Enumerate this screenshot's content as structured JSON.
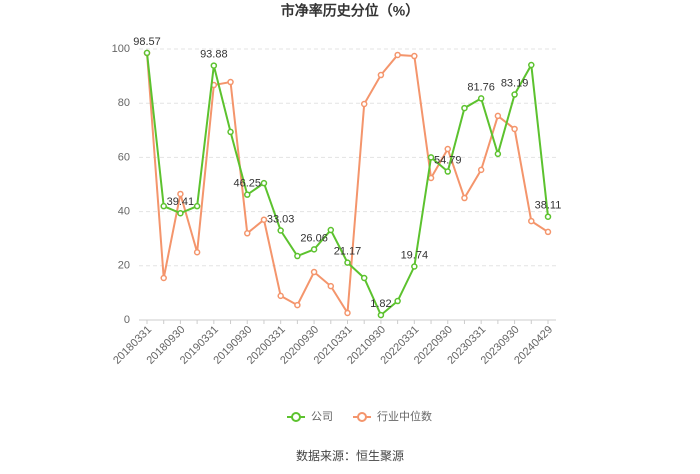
{
  "chart_data": {
    "type": "line",
    "title": "市净率历史分位（%）",
    "categories": [
      "20180331",
      null,
      "20180930",
      null,
      "20190331",
      null,
      "20190930",
      null,
      "20200331",
      null,
      "20200930",
      null,
      "20210331",
      null,
      "20210930",
      null,
      "20220331",
      null,
      "20220930",
      null,
      "20230331",
      null,
      "20230930",
      null,
      "20240429"
    ],
    "series": [
      {
        "name": "公司",
        "color": "#5cc22e",
        "values": [
          98.57,
          42,
          39.41,
          42,
          93.88,
          69.4,
          46.25,
          50.5,
          33.03,
          23.6,
          26.06,
          33.2,
          21.17,
          15.5,
          1.82,
          7,
          19.74,
          60,
          54.79,
          78.2,
          81.76,
          61.3,
          83.19,
          94.1,
          38.11
        ],
        "value_labels": [
          "98.57",
          null,
          "39.41",
          null,
          "93.88",
          null,
          "46.25",
          null,
          "33.03",
          null,
          "26.06",
          null,
          "21.17",
          null,
          "1.82",
          null,
          "19.74",
          null,
          "54.79",
          null,
          "81.76",
          null,
          "83.19",
          null,
          "38.11"
        ]
      },
      {
        "name": "行业中位数",
        "color": "#f4956c",
        "values": [
          98.5,
          15.5,
          46.5,
          25,
          86.7,
          87.8,
          32,
          37,
          8.9,
          5.5,
          17.7,
          12.5,
          2.6,
          79.7,
          90.4,
          97.8,
          97.4,
          52.4,
          63.1,
          45,
          55.4,
          75.3,
          70.5,
          36.5,
          32.5
        ]
      }
    ],
    "ylim": [
      0,
      100
    ],
    "yticks": [
      0,
      20,
      40,
      60,
      80,
      100
    ],
    "grid": true,
    "legend": "bottom",
    "source": "数据来源：恒生聚源"
  }
}
